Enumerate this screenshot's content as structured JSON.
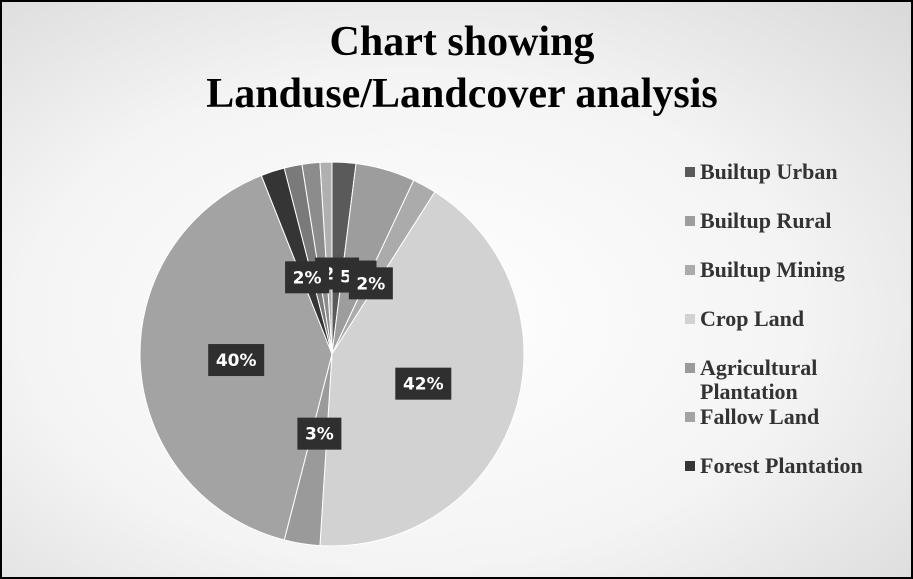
{
  "chart_data": {
    "type": "pie",
    "title": "Chart showing Landuse/Landcover analysis",
    "categories": [
      "Builtup Urban",
      "Builtup Rural",
      "Builtup Mining",
      "Crop Land",
      "Agricultural Plantation",
      "Fallow Land",
      "Forest Plantation",
      null,
      null,
      null
    ],
    "values": [
      2,
      5,
      2,
      42,
      3,
      40,
      2,
      1.5,
      1.5,
      1
    ],
    "value_labels": [
      "2%",
      "5%",
      "2%",
      "42%",
      "3%",
      "40%",
      "2%",
      null,
      null,
      null
    ],
    "colors": [
      "#5a5a5a",
      "#9d9d9d",
      "#ababab",
      "#d2d2d2",
      "#9a9a9a",
      "#a3a3a3",
      "#353535",
      "#7a7a7a",
      "#8c8c8c",
      "#b0b0b0"
    ]
  }
}
